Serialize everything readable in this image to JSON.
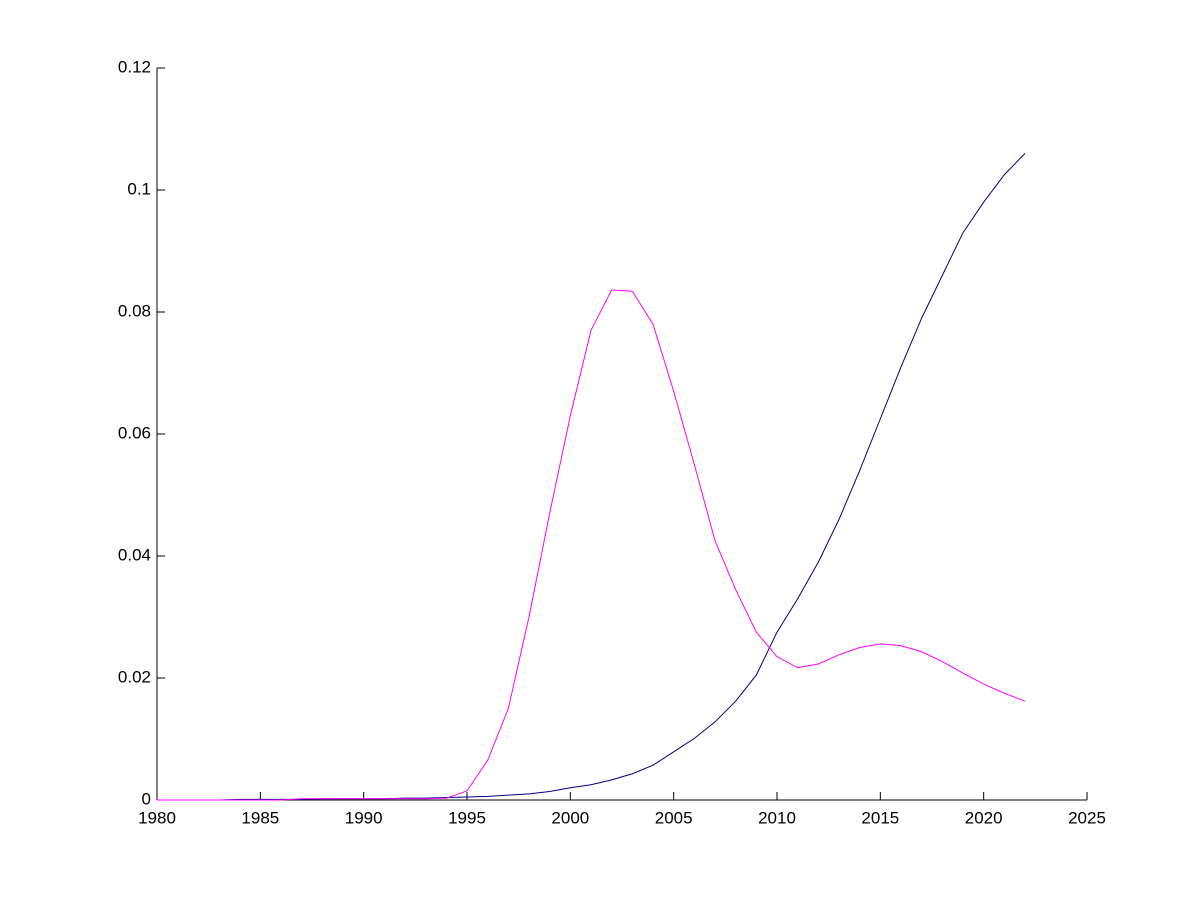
{
  "chart_data": {
    "type": "line",
    "x": [
      1980,
      1981,
      1982,
      1983,
      1984,
      1985,
      1986,
      1987,
      1988,
      1989,
      1990,
      1991,
      1992,
      1993,
      1994,
      1995,
      1996,
      1997,
      1998,
      1999,
      2000,
      2001,
      2002,
      2003,
      2004,
      2005,
      2006,
      2007,
      2008,
      2009,
      2010,
      2011,
      2012,
      2013,
      2014,
      2015,
      2016,
      2017,
      2018,
      2019,
      2020,
      2021,
      2022
    ],
    "series": [
      {
        "color": "#000080",
        "values": [
          0,
          0,
          0,
          0,
          0.0001,
          0.0001,
          0.0001,
          0.0001,
          0.0002,
          0.0002,
          0.0002,
          0.0002,
          0.0003,
          0.0003,
          0.0004,
          0.0005,
          0.0006,
          0.0008,
          0.001,
          0.0014,
          0.002,
          0.0025,
          0.0033,
          0.0043,
          0.0057,
          0.0079,
          0.0101,
          0.0128,
          0.0162,
          0.0205,
          0.0275,
          0.033,
          0.039,
          0.046,
          0.054,
          0.0625,
          0.071,
          0.079,
          0.086,
          0.093,
          0.098,
          0.1025,
          0.106
        ]
      },
      {
        "color": "#ff00ff",
        "values": [
          0,
          0,
          0,
          0,
          0,
          0,
          0,
          0.0002,
          0.0002,
          0.0002,
          0.0002,
          0.0002,
          0.0002,
          0.0002,
          0.0003,
          0.0015,
          0.0065,
          0.015,
          0.03,
          0.047,
          0.063,
          0.077,
          0.0836,
          0.0834,
          0.078,
          0.067,
          0.055,
          0.0425,
          0.0345,
          0.0275,
          0.0235,
          0.0217,
          0.0223,
          0.0238,
          0.025,
          0.0256,
          0.0253,
          0.0243,
          0.0227,
          0.0208,
          0.019,
          0.0175,
          0.0162
        ]
      }
    ],
    "xlim": [
      1980,
      2025
    ],
    "xticks": [
      1980,
      1985,
      1990,
      1995,
      2000,
      2005,
      2010,
      2015,
      2020,
      2025
    ],
    "ylim": [
      0,
      0.12
    ],
    "yticks": [
      0,
      0.02,
      0.04,
      0.06,
      0.08,
      0.1,
      0.12
    ]
  }
}
